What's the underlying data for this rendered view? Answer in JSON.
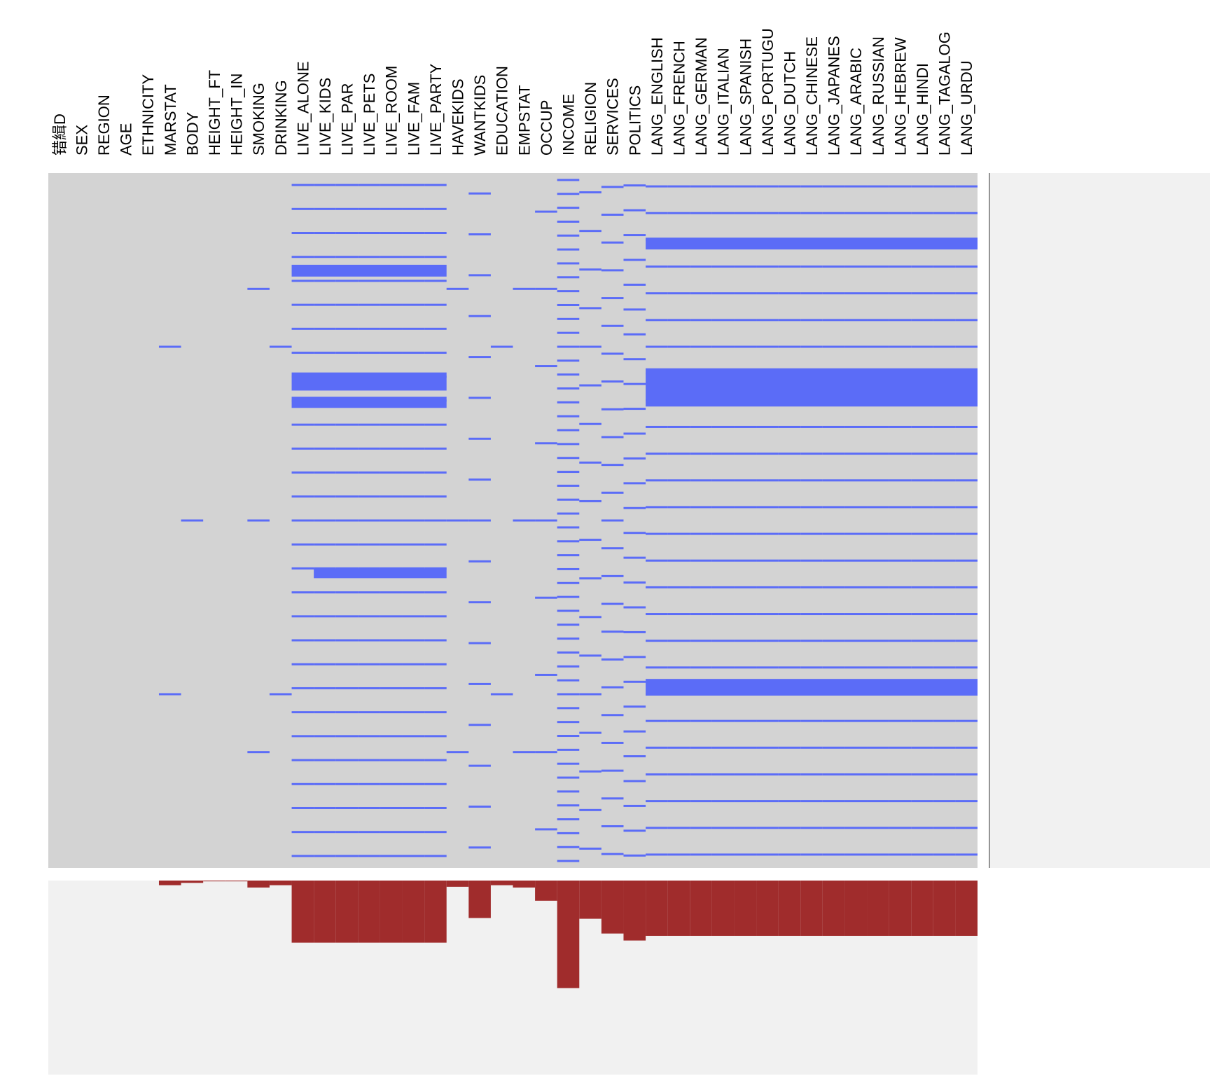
{
  "chart_data": {
    "type": "missing-matrix",
    "categories": [
      "错緝D",
      "SEX",
      "REGION",
      "AGE",
      "ETHNICITY",
      "MARSTAT",
      "BODY",
      "HEIGHT_FT",
      "HEIGHT_IN",
      "SMOKING",
      "DRINKING",
      "LIVE_ALONE",
      "LIVE_KIDS",
      "LIVE_PAR",
      "LIVE_PETS",
      "LIVE_ROOM",
      "LIVE_FAM",
      "LIVE_PARTY",
      "HAVEKIDS",
      "WANTKIDS",
      "EDUCATION",
      "EMPSTAT",
      "OCCUP",
      "INCOME",
      "RELIGION",
      "SERVICES",
      "POLITICS",
      "LANG_ENGLISH",
      "LANG_FRENCH",
      "LANG_GERMAN",
      "LANG_ITALIAN",
      "LANG_SPANISH",
      "LANG_PORTUGU",
      "LANG_DUTCH",
      "LANG_CHINESE",
      "LANG_JAPANES",
      "LANG_ARABIC",
      "LANG_RUSSIAN",
      "LANG_HEBREW",
      "LANG_HINDI",
      "LANG_TAGALOG",
      "LANG_URDU"
    ],
    "values": [
      0,
      0,
      0,
      0,
      0,
      0.024,
      0.012,
      0.004,
      0.004,
      0.036,
      0.024,
      0.32,
      0.32,
      0.32,
      0.32,
      0.32,
      0.32,
      0.32,
      0.032,
      0.193,
      0.024,
      0.036,
      0.104,
      0.554,
      0.197,
      0.273,
      0.309,
      0.285,
      0.285,
      0.285,
      0.285,
      0.285,
      0.285,
      0.285,
      0.285,
      0.285,
      0.285,
      0.285,
      0.285,
      0.285,
      0.285,
      0.285
    ],
    "ylim": [
      0,
      1
    ],
    "present_color": "#d3d3d3",
    "missing_color": "#5b6cf7",
    "bar_color": "#a02c2c",
    "missing_bands": [
      {
        "columns": [
          27,
          41
        ],
        "rows": [
          0.281,
          0.336
        ]
      },
      {
        "columns": [
          27,
          41
        ],
        "rows": [
          0.728,
          0.752
        ]
      },
      {
        "columns": [
          27,
          41
        ],
        "rows": [
          0.093,
          0.11
        ]
      },
      {
        "columns": [
          11,
          17
        ],
        "rows": [
          0.132,
          0.149
        ]
      },
      {
        "columns": [
          11,
          17
        ],
        "rows": [
          0.287,
          0.313
        ]
      },
      {
        "columns": [
          11,
          17
        ],
        "rows": [
          0.322,
          0.338
        ]
      },
      {
        "columns": [
          12,
          17
        ],
        "rows": [
          0.569,
          0.583
        ]
      }
    ]
  }
}
